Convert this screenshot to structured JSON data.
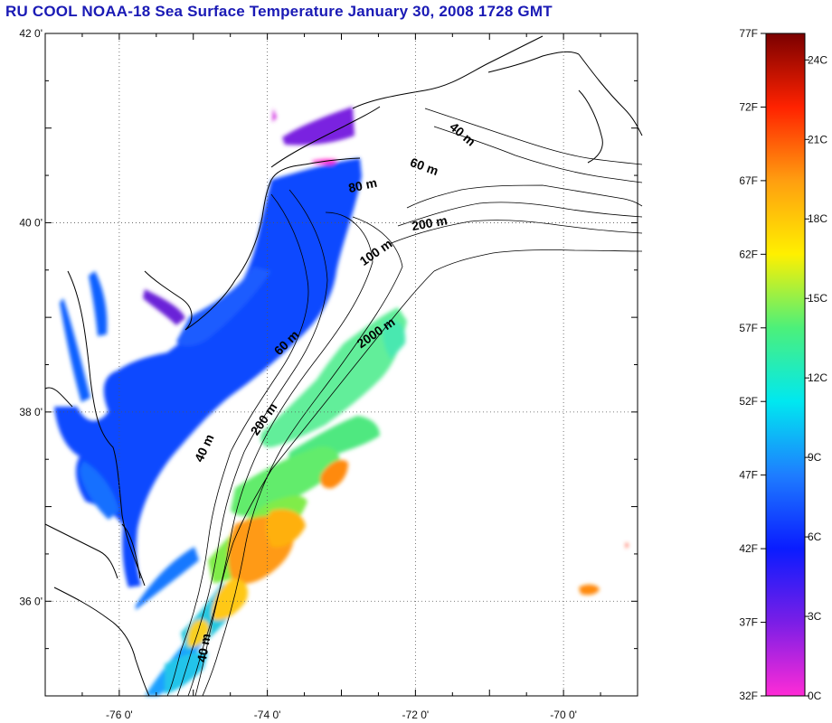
{
  "title": "RU COOL  NOAA-18 Sea Surface Temperature January 30, 2008 1728 GMT",
  "lat_labels": [
    "42 0'",
    "40 0'",
    "38 0'",
    "36 0'"
  ],
  "lon_labels": [
    "-76 0'",
    "-74 0'",
    "-72 0'",
    "-70 0'"
  ],
  "map": {
    "lon_range": [
      -77,
      -69
    ],
    "lat_range": [
      35,
      42
    ],
    "grid": "dotted"
  },
  "contour_labels": [
    {
      "text": "40 m",
      "lon": -71.4,
      "lat": 40.9,
      "rotate": 40
    },
    {
      "text": "60 m",
      "lon": -71.9,
      "lat": 40.55,
      "rotate": 20
    },
    {
      "text": "80 m",
      "lon": -72.7,
      "lat": 40.35,
      "rotate": -12
    },
    {
      "text": "200 m",
      "lon": -71.8,
      "lat": 39.95,
      "rotate": -10
    },
    {
      "text": "100 m",
      "lon": -72.5,
      "lat": 39.65,
      "rotate": -35
    },
    {
      "text": "2000 m",
      "lon": -72.5,
      "lat": 38.8,
      "rotate": -35
    },
    {
      "text": "60 m",
      "lon": -73.7,
      "lat": 38.7,
      "rotate": -45
    },
    {
      "text": "200 m",
      "lon": -74.0,
      "lat": 37.9,
      "rotate": -55
    },
    {
      "text": "40 m",
      "lon": -74.8,
      "lat": 37.6,
      "rotate": -65
    },
    {
      "text": "40 m",
      "lon": -74.8,
      "lat": 35.5,
      "rotate": -80
    }
  ],
  "colorbar": {
    "fahrenheit_labels": [
      "77F",
      "72F",
      "67F",
      "62F",
      "57F",
      "52F",
      "47F",
      "42F",
      "37F",
      "32F"
    ],
    "celsius_labels": [
      "24C",
      "21C",
      "18C",
      "15C",
      "12C",
      "9C",
      "6C",
      "3C",
      "0C"
    ],
    "colors": [
      "#ff2bd6",
      "#7a1ee6",
      "#0a1cff",
      "#1e7dff",
      "#00e8f0",
      "#4cf07a",
      "#fff000",
      "#ff9e10",
      "#ff2200",
      "#7a0000"
    ]
  }
}
